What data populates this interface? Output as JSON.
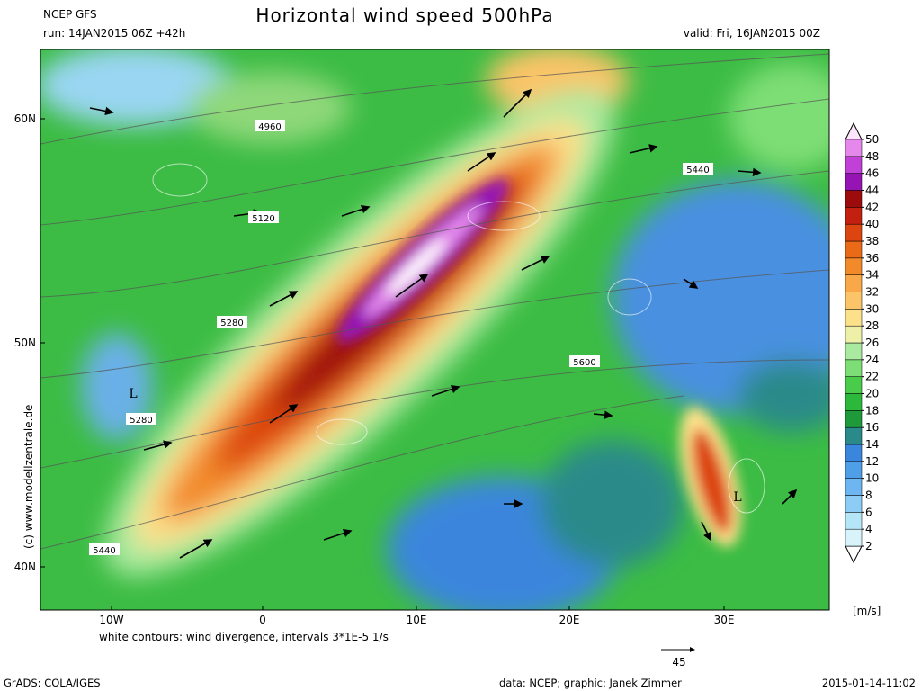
{
  "header": {
    "model": "NCEP GFS",
    "title": "Horizontal wind speed 500hPa",
    "run": "run: 14JAN2015 06Z +42h",
    "valid": "valid: Fri, 16JAN2015 00Z"
  },
  "map": {
    "lat_labels": [
      "60N",
      "50N",
      "40N"
    ],
    "lon_labels": [
      "10W",
      "0",
      "10E",
      "20E",
      "30E"
    ],
    "contour_labels": [
      4960,
      5120,
      5280,
      5280,
      5440,
      5440,
      5600
    ],
    "low_markers": [
      "L",
      "L"
    ],
    "note": "white contours: wind divergence, intervals 3*1E-5 1/s",
    "credit": "(c) www.modellzentrale.de"
  },
  "colorbar": {
    "levels": [
      2,
      4,
      6,
      8,
      10,
      12,
      14,
      16,
      18,
      20,
      22,
      24,
      26,
      28,
      30,
      32,
      34,
      36,
      38,
      40,
      42,
      44,
      46,
      48,
      50
    ],
    "colors": [
      "#d8f4fa",
      "#b4e6f8",
      "#8ccdf6",
      "#6eb6f2",
      "#4f9ee8",
      "#3a86dc",
      "#2a8a8a",
      "#1f9a3a",
      "#2cb83a",
      "#48cc4a",
      "#7ede76",
      "#aaeaa0",
      "#eef0a8",
      "#fde08a",
      "#fbc468",
      "#f8a848",
      "#f28a2c",
      "#ea6a18",
      "#dc4410",
      "#c42010",
      "#9c0c0c",
      "#9614b4",
      "#c040d8",
      "#e488ec"
    ],
    "unit": "[m/s]"
  },
  "reference_vector": {
    "value": 45
  },
  "footer": {
    "software": "GrADS: COLA/IGES",
    "source": "data: NCEP; graphic: Janek Zimmer",
    "timestamp": "2015-01-14-11:02"
  }
}
